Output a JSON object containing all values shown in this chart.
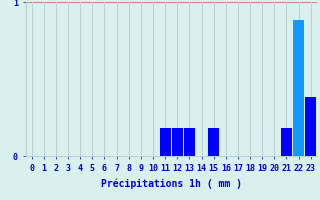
{
  "hours": [
    0,
    1,
    2,
    3,
    4,
    5,
    6,
    7,
    8,
    9,
    10,
    11,
    12,
    13,
    14,
    15,
    16,
    17,
    18,
    19,
    20,
    21,
    22,
    23
  ],
  "values": [
    0,
    0,
    0,
    0,
    0,
    0,
    0,
    0,
    0,
    0,
    0,
    0.18,
    0.18,
    0.18,
    0,
    0.18,
    0,
    0,
    0,
    0,
    0,
    0.18,
    0.88,
    0.38
  ],
  "bar_colors": [
    "#0000ff",
    "#0000ff",
    "#0000ff",
    "#0000ff",
    "#0000ff",
    "#0000ff",
    "#0000ff",
    "#0000ff",
    "#0000ff",
    "#0000ff",
    "#0000ff",
    "#0000ff",
    "#0000ff",
    "#0000ff",
    "#0000ff",
    "#0000ff",
    "#0000ff",
    "#0000ff",
    "#0000ff",
    "#0000ff",
    "#0000ff",
    "#0000ff",
    "#1199ff",
    "#0000ff"
  ],
  "background_color": "#d8f0ee",
  "grid_color": "#b8d0ce",
  "text_color": "#0000cc",
  "xlabel": "Précipitations 1h ( mm )",
  "ylim": [
    0,
    1.0
  ],
  "yticks": [
    0,
    1
  ],
  "ytick_labels": [
    "0",
    "1"
  ],
  "xlim": [
    -0.5,
    23.5
  ],
  "xlabel_fontsize": 7,
  "tick_fontsize": 6,
  "bar_width": 0.9
}
